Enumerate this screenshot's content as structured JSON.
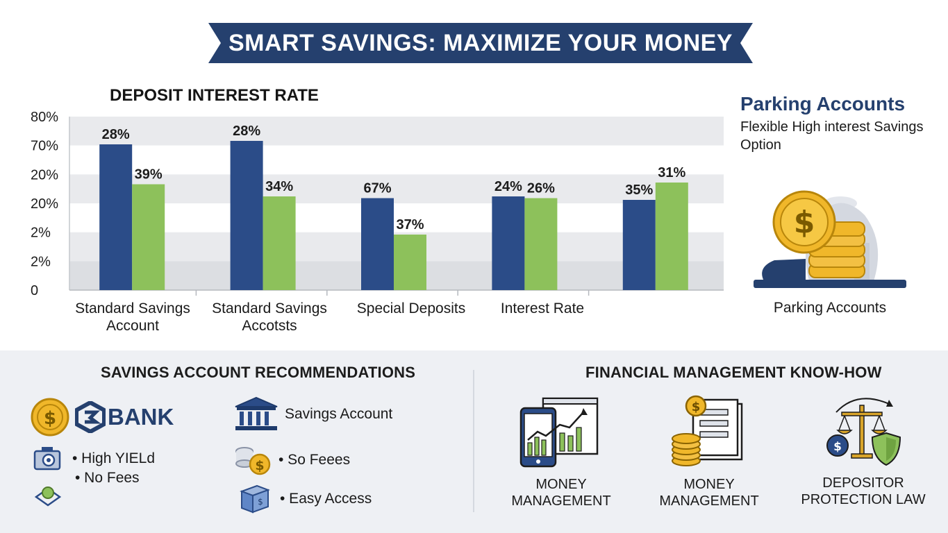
{
  "title": "SMART SAVINGS: MAXIMIZE YOUR MONEY",
  "chart_data": {
    "type": "bar",
    "title": "DEPOSIT INTEREST RATE",
    "y_tick_labels": [
      "0",
      "2%",
      "2%",
      "20%",
      "20%",
      "70%",
      "80%"
    ],
    "categories": [
      [
        "Standard Savings",
        "Account"
      ],
      [
        "Standard Savings",
        "Accotsts"
      ],
      [
        "Special Deposits"
      ],
      [
        "Interest Rate"
      ],
      []
    ],
    "series": [
      {
        "color": "#2b4c88",
        "values": [
          28,
          28,
          67,
          24,
          35
        ],
        "labels": [
          "28%",
          "28%",
          "67%",
          "24%",
          "35%"
        ],
        "shown_heights_pct_of_axis": [
          84,
          86,
          53,
          54,
          52
        ]
      },
      {
        "color": "#8dc15b",
        "values": [
          39,
          34,
          37,
          26,
          31
        ],
        "labels": [
          "39%",
          "34%",
          "37%",
          "26%",
          "31%"
        ],
        "shown_heights_pct_of_axis": [
          61,
          54,
          32,
          53,
          62
        ]
      }
    ],
    "grid": true,
    "legend": "none"
  },
  "parking": {
    "title": "Parking Accounts",
    "subtitle": "Flexible High interest Savings Option",
    "caption": "Parking Accounts"
  },
  "recommendations": {
    "title": "SAVINGS ACCOUNT RECOMMENDATIONS",
    "bank_label": "BANK",
    "savings_account_label": "Savings Account",
    "left_items": [
      "• High YIELd",
      "• No Fees"
    ],
    "right_items": [
      "• So Feees",
      "• Easy Access"
    ]
  },
  "know_how": {
    "title": "FINANCIAL MANAGEMENT KNOW-HOW",
    "items": [
      {
        "icon": "mobile-chart-icon",
        "label": [
          "MONEY",
          "MANAGEMENT"
        ]
      },
      {
        "icon": "coins-document-icon",
        "label": [
          "MONEY",
          "MANAGEMENT"
        ]
      },
      {
        "icon": "scales-shield-icon",
        "label": [
          "DEPOSITOR",
          "PROTECTION LAW"
        ]
      }
    ]
  },
  "colors": {
    "navy": "#25406e",
    "bar_blue": "#2b4c88",
    "bar_green": "#8dc15b",
    "gold": "#f0b72a"
  }
}
